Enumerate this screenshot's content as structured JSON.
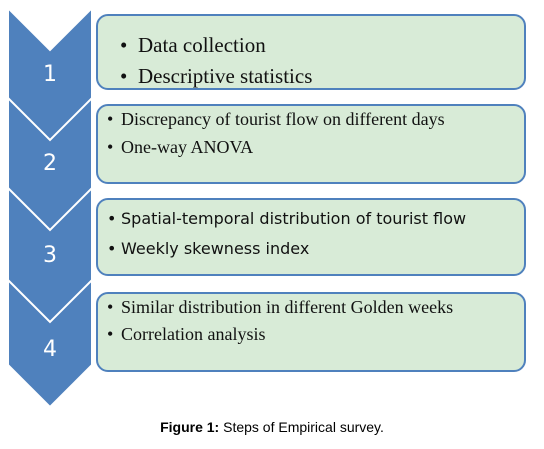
{
  "steps": [
    {
      "number": "1",
      "items": [
        "Data collection",
        "Descriptive statistics"
      ]
    },
    {
      "number": "2",
      "items": [
        "Discrepancy of tourist flow on different days",
        "One-way ANOVA"
      ]
    },
    {
      "number": "3",
      "items": [
        "Spatial-temporal distribution of tourist flow",
        "Weekly skewness index"
      ]
    },
    {
      "number": "4",
      "items": [
        "Similar distribution in different Golden weeks",
        "Correlation analysis"
      ]
    }
  ],
  "caption": {
    "label": "Figure 1:",
    "text": "Steps of Empirical survey."
  },
  "colors": {
    "chevron_fill": "#4f81bd",
    "box_fill": "#d8ebd7",
    "box_border": "#4f81bd"
  }
}
